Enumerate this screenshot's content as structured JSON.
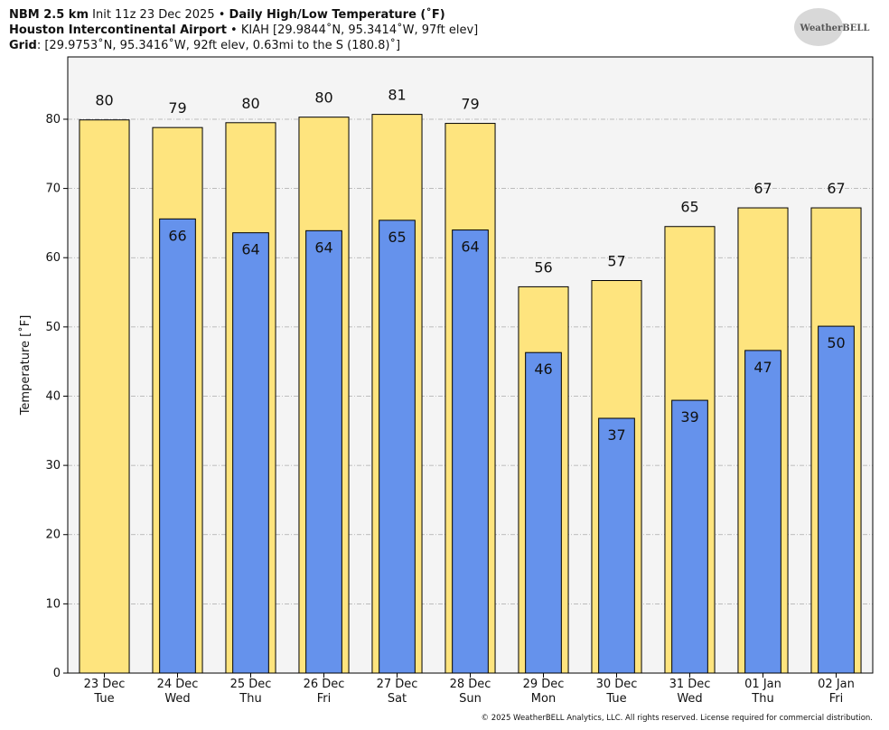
{
  "header": {
    "line1": {
      "bold1": "NBM 2.5 km",
      "normal": " Init 11z 23 Dec 2025 • ",
      "bold2": "Daily High/Low Temperature (˚F)"
    },
    "line2": {
      "bold": "Houston Intercontinental Airport",
      "normal": " • KIAH [29.9844˚N, 95.3414˚W, 97ft elev]"
    },
    "line3": {
      "bold": "Grid",
      "normal": ": [29.9753˚N, 95.3416˚W, 92ft elev, 0.63mi to the S (180.8)˚]"
    },
    "logo": "WeatherBELL"
  },
  "footer": "© 2025 WeatherBELL Analytics, LLC. All rights reserved. License required for commercial distribution.",
  "chart_data": {
    "type": "bar",
    "y_label": "Temperature [˚F]",
    "categories": [
      "23 Dec",
      "24 Dec",
      "25 Dec",
      "26 Dec",
      "27 Dec",
      "28 Dec",
      "29 Dec",
      "30 Dec",
      "31 Dec",
      "01 Jan",
      "02 Jan"
    ],
    "category_days": [
      "Tue",
      "Wed",
      "Thu",
      "Fri",
      "Sat",
      "Sun",
      "Mon",
      "Tue",
      "Wed",
      "Thu",
      "Fri"
    ],
    "series": [
      {
        "name": "High",
        "color": "#fee47e",
        "values": [
          79.9,
          78.8,
          79.5,
          80.3,
          80.7,
          79.4,
          55.8,
          56.7,
          64.5,
          67.2,
          67.2
        ],
        "value_labels": [
          "80",
          "79",
          "80",
          "80",
          "81",
          "79",
          "56",
          "57",
          "65",
          "67",
          "67"
        ]
      },
      {
        "name": "Low",
        "color": "#6592ec",
        "values": [
          null,
          65.6,
          63.6,
          63.9,
          65.4,
          64.0,
          46.3,
          36.8,
          39.4,
          46.6,
          50.1
        ],
        "value_labels": [
          null,
          "66",
          "64",
          "64",
          "65",
          "64",
          "46",
          "37",
          "39",
          "47",
          "50"
        ]
      }
    ],
    "ylim": [
      0,
      89
    ],
    "yticks": [
      0,
      10,
      20,
      30,
      40,
      50,
      60,
      70,
      80
    ],
    "grid": true
  }
}
